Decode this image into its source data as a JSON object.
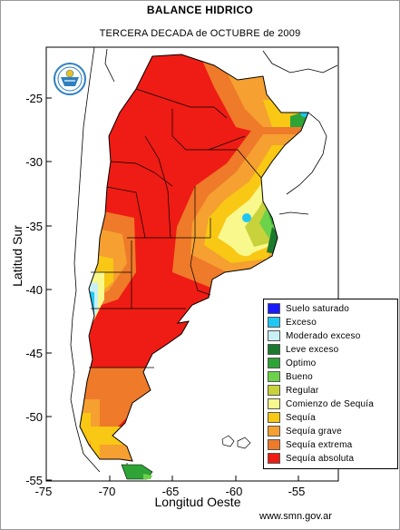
{
  "header": {
    "title": "BALANCE HIDRICO",
    "subtitle": "TERCERA DECADA de OCTUBRE de 2009"
  },
  "axes": {
    "y_label": "Latitud Sur",
    "x_label": "Longitud Oeste",
    "y_ticks": [
      "-25",
      "-30",
      "-35",
      "-40",
      "-45",
      "-50",
      "-55"
    ],
    "x_ticks": [
      "-75",
      "-70",
      "-65",
      "-60",
      "-55"
    ]
  },
  "footer": {
    "credit": "www.smn.gov.ar"
  },
  "logo": {
    "icon": "smn-seal-icon"
  },
  "legend": {
    "items": [
      {
        "label": "Suelo saturado",
        "color": "#1a1aff"
      },
      {
        "label": "Exceso",
        "color": "#1ec8f5"
      },
      {
        "label": "Moderado exceso",
        "color": "#c8f0f5"
      },
      {
        "label": "Leve exceso",
        "color": "#1b7a2e"
      },
      {
        "label": "Optimo",
        "color": "#2ea336"
      },
      {
        "label": "Bueno",
        "color": "#6cd24a"
      },
      {
        "label": "Regular",
        "color": "#c8d23a"
      },
      {
        "label": "Comienzo de Sequía",
        "color": "#f8f88c"
      },
      {
        "label": "Sequía",
        "color": "#f8c814"
      },
      {
        "label": "Sequía grave",
        "color": "#f5a030"
      },
      {
        "label": "Sequía extrema",
        "color": "#ee7a2a"
      },
      {
        "label": "Sequía absoluta",
        "color": "#ee1c14"
      }
    ]
  }
}
